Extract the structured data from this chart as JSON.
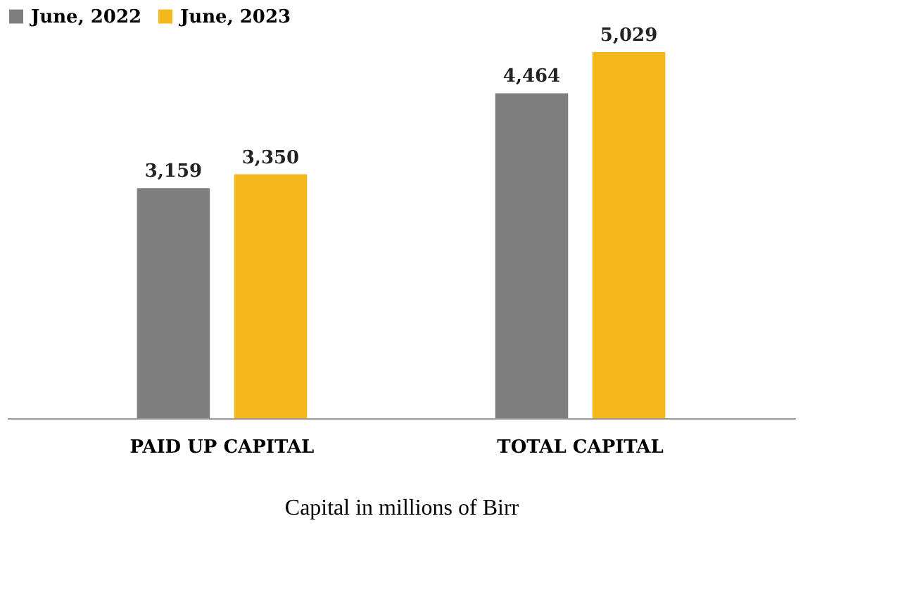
{
  "chart_data": {
    "type": "bar",
    "categories": [
      "PAID UP CAPITAL",
      "TOTAL CAPITAL"
    ],
    "series": [
      {
        "name": "June, 2022",
        "color": "#7f7f7f",
        "values": [
          3159,
          4464
        ],
        "value_labels": [
          "3,159",
          "4,464"
        ]
      },
      {
        "name": "June, 2023",
        "color": "#f4b81c",
        "values": [
          3350,
          5029
        ],
        "value_labels": [
          "3,350",
          "5,029"
        ]
      }
    ],
    "legend": "top",
    "grid": false,
    "xlabel": "Capital in millions of Birr"
  }
}
